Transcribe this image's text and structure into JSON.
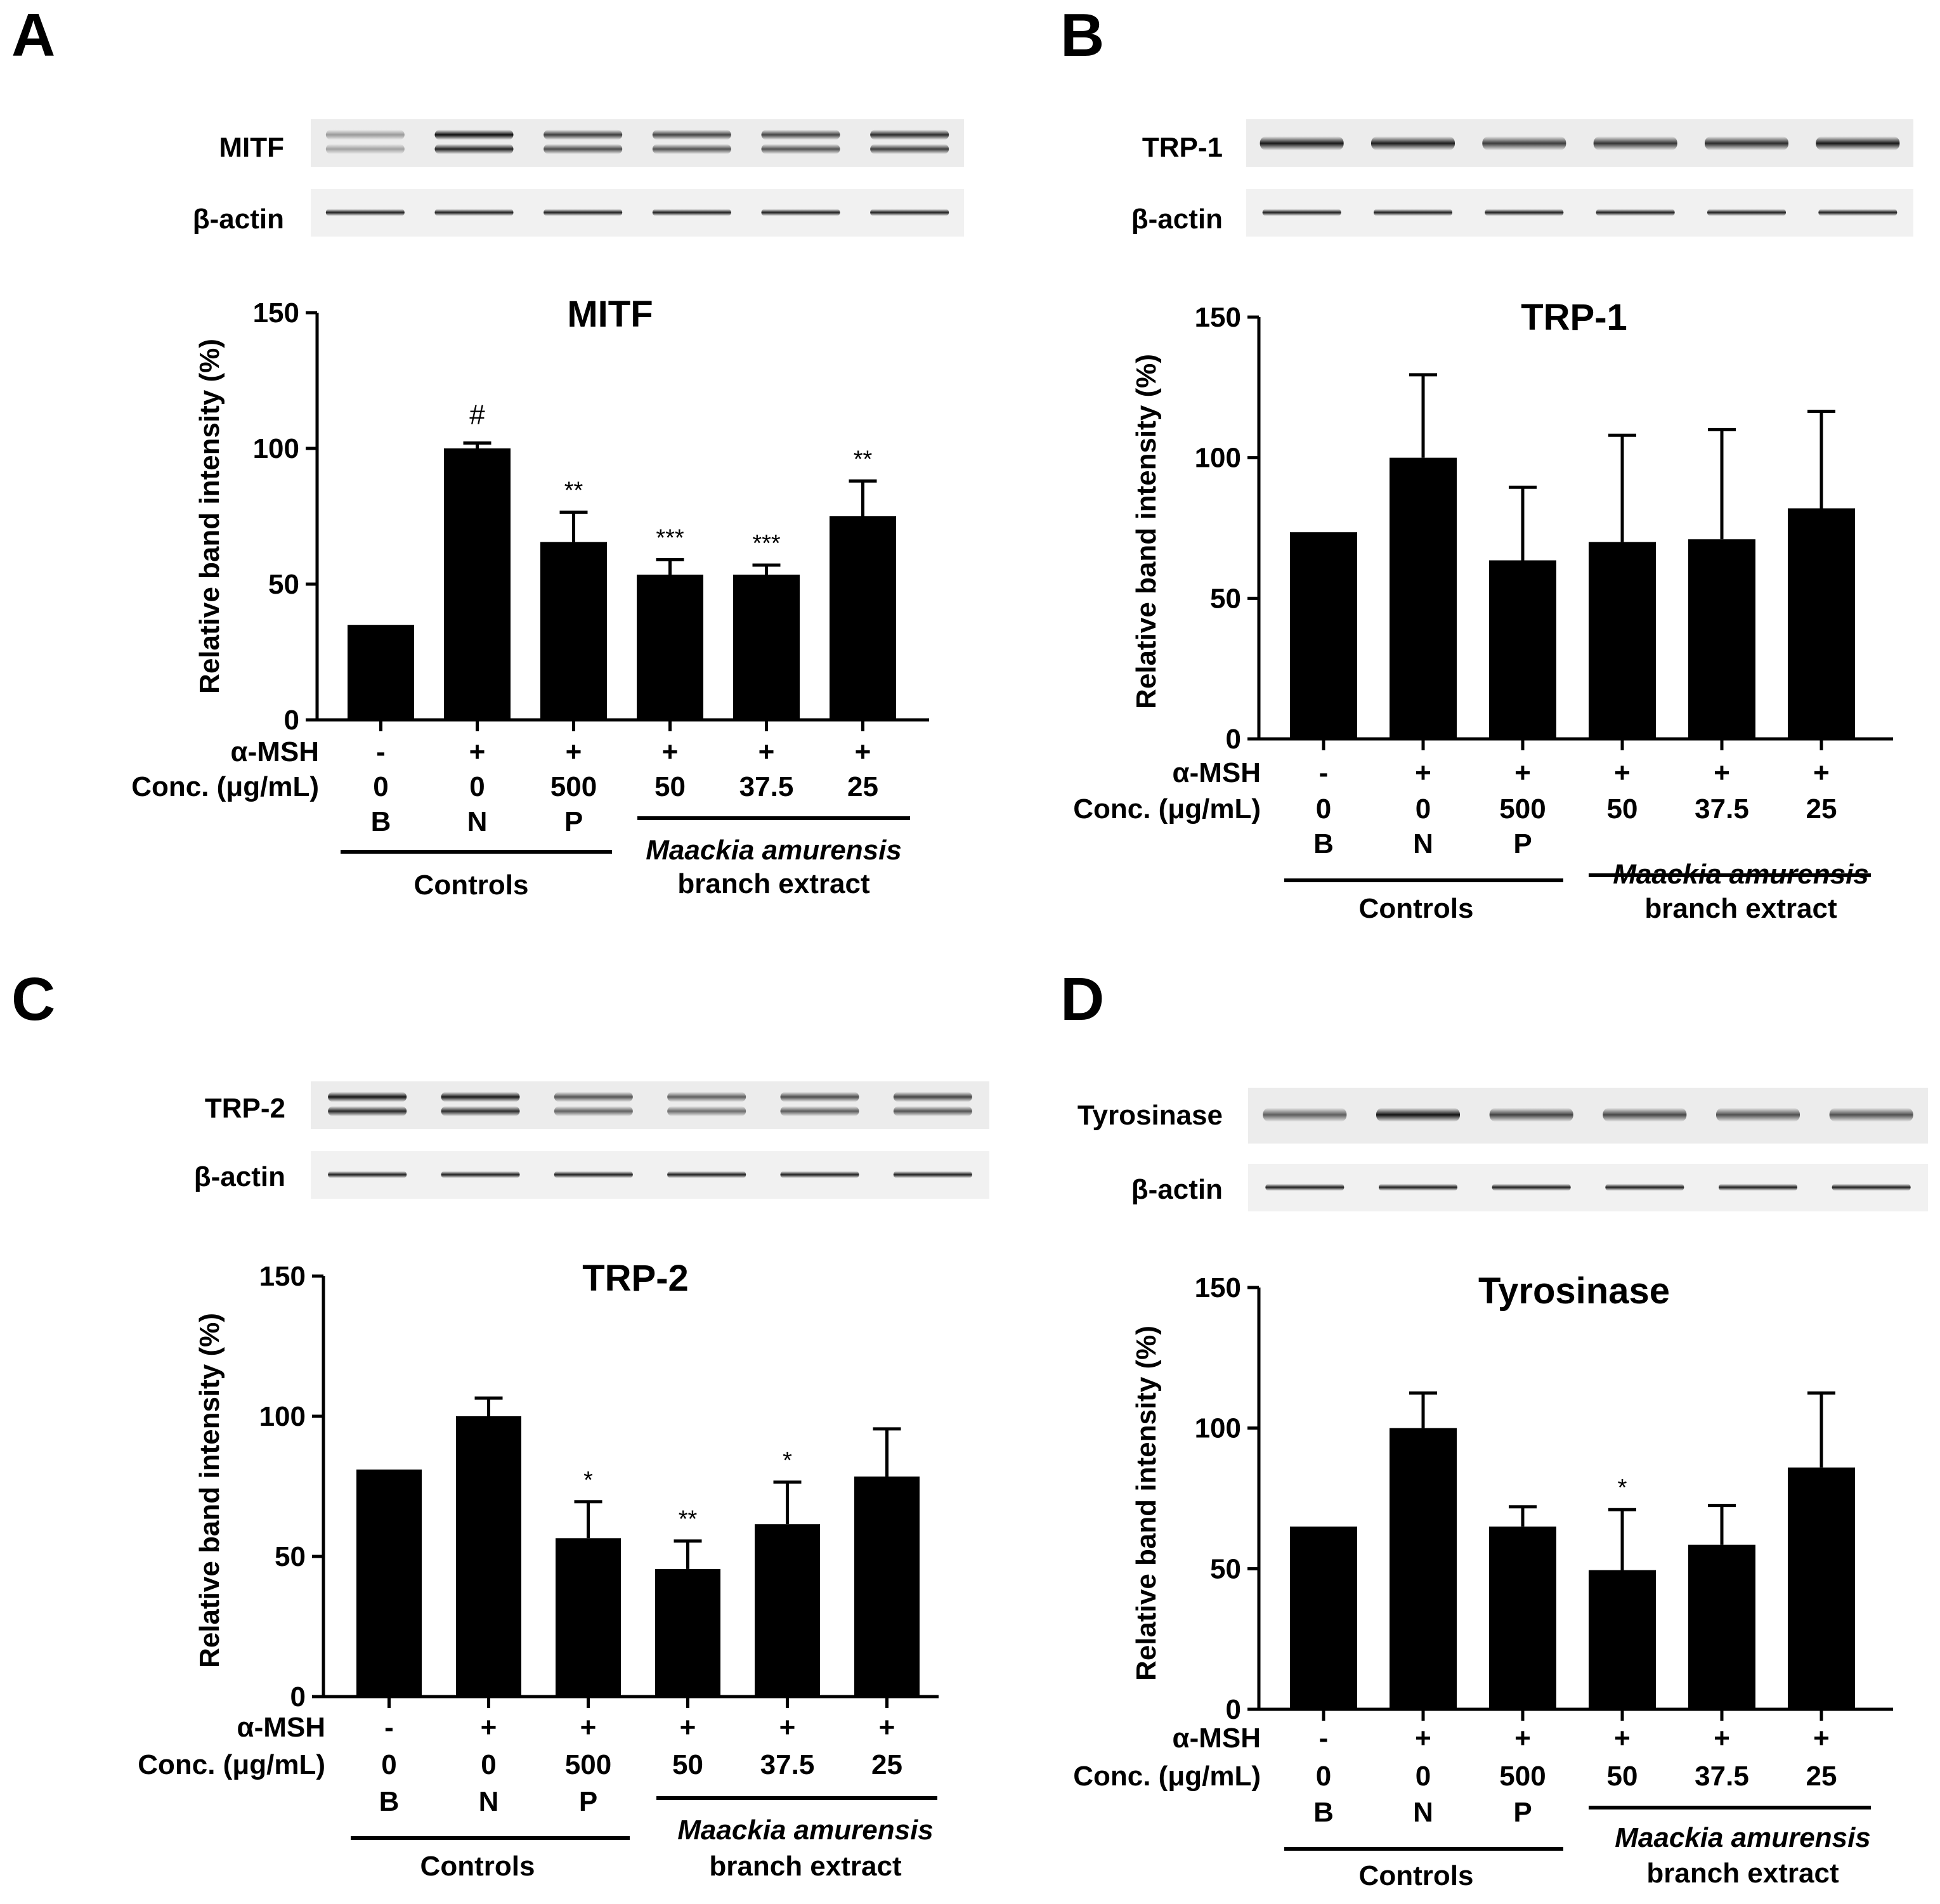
{
  "figure_label_font": "bold",
  "common": {
    "y_axis_label": "Relative band intensity (%)",
    "y_ticks": [
      "0",
      "50",
      "100",
      "150"
    ],
    "msh_row_label": "α-MSH",
    "conc_row_label": "Conc. (μg/mL)",
    "msh_values": [
      "-",
      "+",
      "+",
      "+",
      "+",
      "+"
    ],
    "conc_values": [
      "0",
      "0",
      "500",
      "50",
      "37.5",
      "25"
    ],
    "group_codes": [
      "B",
      "N",
      "P",
      "",
      "",
      ""
    ],
    "controls_label": "Controls",
    "extract_label_italic": "Maackia amurensis",
    "extract_label_plain": "branch extract",
    "loading_control_label": "β-actin"
  },
  "chart_data": [
    {
      "panel": "A",
      "type": "bar",
      "title": "MITF",
      "blot_label": "MITF",
      "categories": [
        "B",
        "N",
        "P",
        "50",
        "37.5",
        "25"
      ],
      "values": [
        35,
        100,
        65.5,
        53.5,
        53.5,
        75
      ],
      "errors": [
        0,
        2,
        11,
        5.5,
        3.5,
        13
      ],
      "annotations": [
        "",
        "#",
        "**",
        "***",
        "***",
        "**"
      ],
      "ylim": [
        0,
        150
      ]
    },
    {
      "panel": "B",
      "type": "bar",
      "title": "TRP-1",
      "blot_label": "TRP-1",
      "categories": [
        "B",
        "N",
        "P",
        "50",
        "37.5",
        "25"
      ],
      "values": [
        73.5,
        100,
        63.5,
        70,
        71,
        82
      ],
      "errors": [
        0,
        29.5,
        26,
        38,
        39,
        34.5
      ],
      "annotations": [
        "",
        "",
        "",
        "",
        "",
        ""
      ],
      "ylim": [
        0,
        150
      ]
    },
    {
      "panel": "C",
      "type": "bar",
      "title": "TRP-2",
      "blot_label": "TRP-2",
      "categories": [
        "B",
        "N",
        "P",
        "50",
        "37.5",
        "25"
      ],
      "values": [
        81,
        100,
        56.5,
        45.5,
        61.5,
        78.5
      ],
      "errors": [
        0,
        6.5,
        13,
        10,
        15,
        17
      ],
      "annotations": [
        "",
        "",
        "*",
        "**",
        "*",
        ""
      ],
      "ylim": [
        0,
        150
      ]
    },
    {
      "panel": "D",
      "type": "bar",
      "title": "Tyrosinase",
      "blot_label": "Tyrosinase",
      "categories": [
        "B",
        "N",
        "P",
        "50",
        "37.5",
        "25"
      ],
      "values": [
        65,
        100,
        65,
        49.5,
        58.5,
        86
      ],
      "errors": [
        0,
        12.5,
        7,
        21.5,
        14,
        26.5
      ],
      "annotations": [
        "",
        "",
        "",
        "*",
        "",
        ""
      ],
      "ylim": [
        0,
        150
      ]
    }
  ]
}
